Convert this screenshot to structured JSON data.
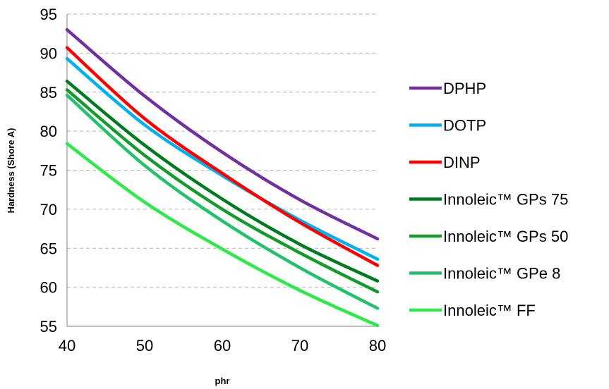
{
  "chart_data": {
    "type": "line",
    "title": "",
    "xlabel": "phr",
    "ylabel": "Hardness (Shore A)",
    "xlim": [
      40,
      80
    ],
    "ylim": [
      55,
      95
    ],
    "xticks": [
      40,
      50,
      60,
      70,
      80
    ],
    "yticks": [
      55,
      60,
      65,
      70,
      75,
      80,
      85,
      90,
      95
    ],
    "grid": "horizontal dashed",
    "legend": "right",
    "x": [
      40,
      50,
      60,
      70,
      80
    ],
    "series": [
      {
        "name": "DPHP",
        "color": "#7030a0",
        "values": [
          93.0,
          84.5,
          77.3,
          71.2,
          66.2
        ]
      },
      {
        "name": "DOTP",
        "color": "#00b0f0",
        "values": [
          89.3,
          80.8,
          74.3,
          68.6,
          63.6
        ]
      },
      {
        "name": "DINP",
        "color": "#ff0000",
        "values": [
          90.7,
          81.6,
          74.6,
          68.3,
          62.8
        ]
      },
      {
        "name": "Innoleic™ GPs 75",
        "color": "#007a1f",
        "values": [
          86.4,
          78.2,
          71.3,
          65.5,
          60.8
        ]
      },
      {
        "name": "Innoleic™ GPs 50",
        "color": "#159a2c",
        "values": [
          85.3,
          76.9,
          70.0,
          64.4,
          59.4
        ]
      },
      {
        "name": "Innoleic™ GPe 8",
        "color": "#23c26a",
        "values": [
          84.6,
          75.6,
          68.5,
          62.5,
          57.3
        ]
      },
      {
        "name": "Innoleic™ FF",
        "color": "#2fe84a",
        "values": [
          78.4,
          70.9,
          64.9,
          59.6,
          55.1
        ]
      }
    ]
  }
}
